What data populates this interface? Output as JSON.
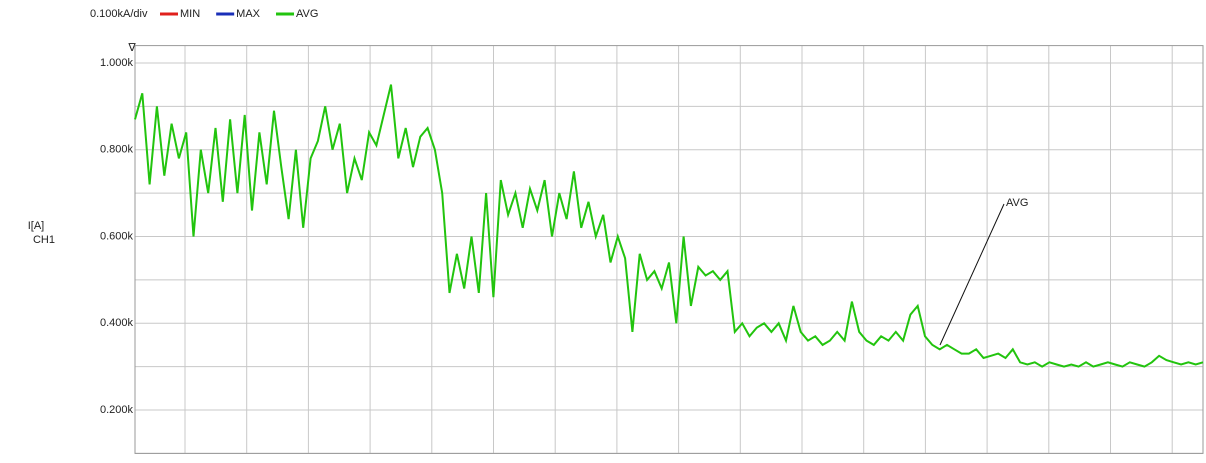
{
  "chart_data": {
    "type": "line",
    "scale_label": "0.100kA/div",
    "legend": [
      {
        "name": "MIN",
        "color": "#e0201c"
      },
      {
        "name": "MAX",
        "color": "#1a2fb8"
      }
    ],
    "y_label": "I[A]",
    "y_label2": "CH1",
    "annotation": "AVG",
    "ylim": [
      100,
      1040
    ],
    "yticks": [
      {
        "value": 200,
        "label": "0.200k"
      },
      {
        "value": 400,
        "label": "0.400k"
      },
      {
        "value": 600,
        "label": "0.600k"
      },
      {
        "value": 800,
        "label": "0.800k"
      },
      {
        "value": 1000,
        "label": "1.000k"
      }
    ],
    "y_minor_grid": [
      100,
      300,
      500,
      700,
      900
    ],
    "grid": true,
    "series": [
      {
        "name": "AVG",
        "color": "#22c40e",
        "values": [
          870,
          930,
          720,
          900,
          740,
          860,
          780,
          840,
          600,
          800,
          700,
          850,
          680,
          870,
          700,
          880,
          660,
          840,
          720,
          890,
          760,
          640,
          800,
          620,
          780,
          820,
          900,
          800,
          860,
          700,
          780,
          730,
          840,
          810,
          880,
          950,
          780,
          850,
          760,
          830,
          850,
          800,
          700,
          470,
          560,
          480,
          600,
          470,
          700,
          460,
          730,
          650,
          700,
          620,
          710,
          660,
          730,
          600,
          700,
          640,
          750,
          620,
          680,
          600,
          650,
          540,
          600,
          550,
          380,
          560,
          500,
          520,
          480,
          540,
          400,
          600,
          440,
          530,
          510,
          520,
          500,
          520,
          380,
          400,
          370,
          390,
          400,
          380,
          400,
          360,
          440,
          380,
          360,
          370,
          350,
          360,
          380,
          360,
          450,
          380,
          360,
          350,
          370,
          360,
          380,
          360,
          420,
          440,
          370,
          350,
          340,
          350,
          340,
          330,
          330,
          340,
          320,
          325,
          330,
          320,
          340,
          310,
          305,
          310,
          300,
          310,
          305,
          300,
          305,
          300,
          310,
          300,
          305,
          310,
          305,
          300,
          310,
          305,
          300,
          310,
          325,
          315,
          310,
          305,
          310,
          305,
          310
        ]
      }
    ]
  }
}
